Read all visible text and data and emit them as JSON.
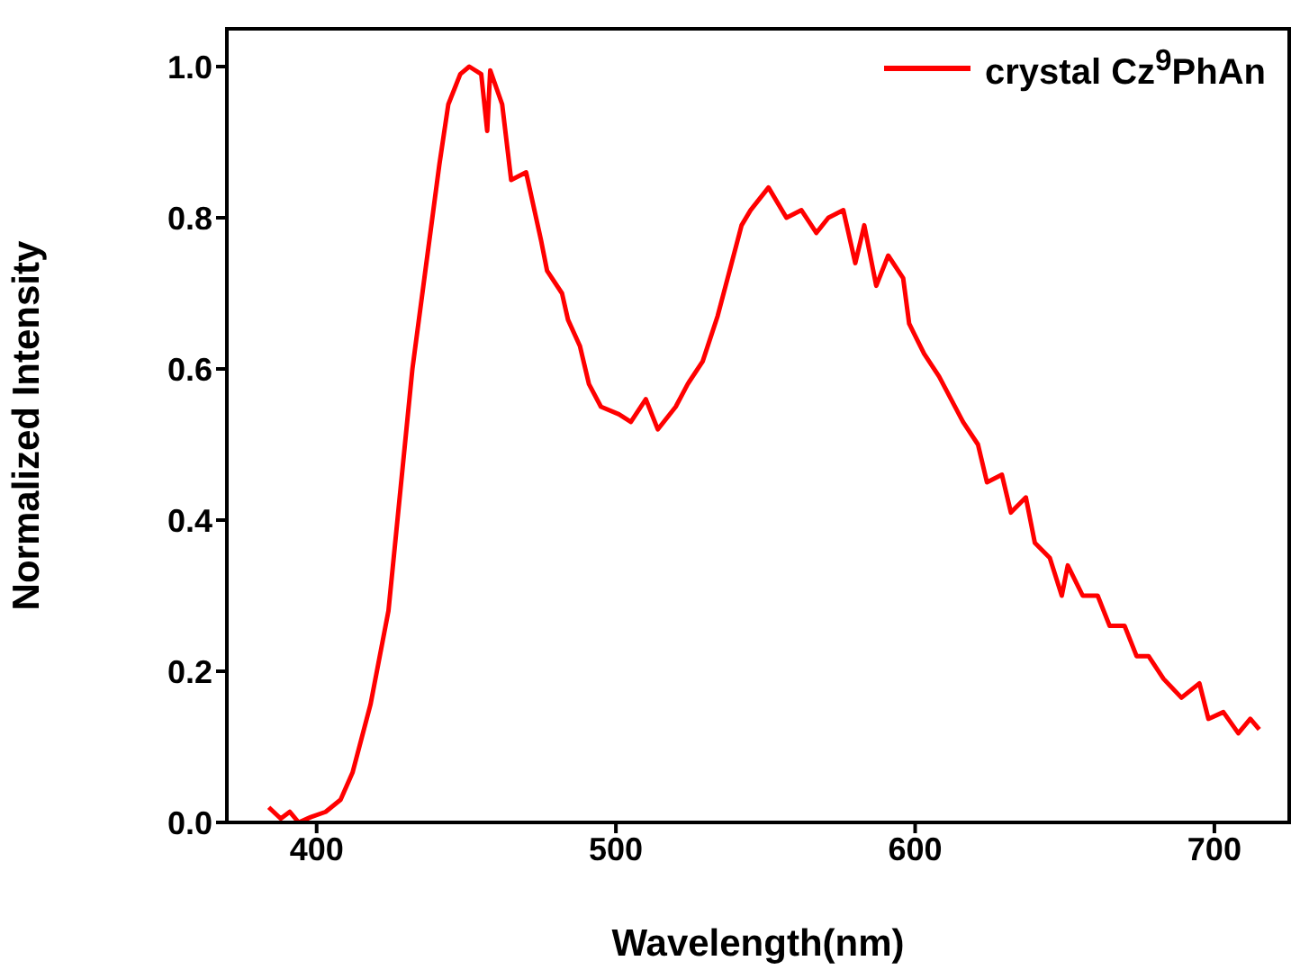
{
  "chart_data": {
    "type": "line",
    "xlabel": "Wavelength(nm)",
    "ylabel": "Normalized Intensity",
    "xlim": [
      370,
      725
    ],
    "xticks": [
      400,
      500,
      600,
      700
    ],
    "ylim": [
      0,
      1.05
    ],
    "yticks": [
      {
        "value": 0,
        "label": "0.0"
      },
      {
        "value": 0.2,
        "label": "0.2"
      },
      {
        "value": 0.4,
        "label": "0.4"
      },
      {
        "value": 0.6,
        "label": "0.6"
      },
      {
        "value": 0.8,
        "label": "0.8"
      },
      {
        "value": 1,
        "label": "1.0"
      }
    ],
    "legend": "top right",
    "marker": "none",
    "line_style": "solid",
    "grid": false,
    "series": [
      {
        "name": "crystal Cz$^{9}$PhAn",
        "color": "#ff0000",
        "x": [
          384,
          388,
          391,
          394,
          398,
          403,
          408,
          412,
          418,
          424,
          429,
          432,
          436,
          441,
          444,
          448,
          451,
          455,
          457,
          458,
          462,
          465,
          470,
          475,
          477,
          482,
          484,
          488,
          491,
          495,
          501,
          505,
          510,
          514,
          520,
          524,
          529,
          534,
          538,
          542,
          545,
          551,
          557,
          562,
          567,
          571,
          576,
          580,
          583,
          587,
          591,
          596,
          598,
          603,
          608,
          612,
          616,
          621,
          624,
          629,
          632,
          637,
          640,
          645,
          649,
          651,
          656,
          661,
          665,
          670,
          674,
          678,
          683,
          689,
          695,
          698,
          703,
          708,
          712,
          715
        ],
        "values": [
          0.02,
          0.005,
          0.014,
          0,
          0.007,
          0.014,
          0.03,
          0.066,
          0.156,
          0.28,
          0.48,
          0.6,
          0.72,
          0.87,
          0.95,
          0.99,
          1,
          0.99,
          0.915,
          0.995,
          0.95,
          0.85,
          0.86,
          0.77,
          0.73,
          0.7,
          0.665,
          0.63,
          0.58,
          0.55,
          0.54,
          0.53,
          0.56,
          0.52,
          0.55,
          0.58,
          0.61,
          0.67,
          0.73,
          0.79,
          0.81,
          0.84,
          0.8,
          0.81,
          0.78,
          0.8,
          0.81,
          0.74,
          0.79,
          0.71,
          0.75,
          0.72,
          0.66,
          0.62,
          0.59,
          0.56,
          0.53,
          0.5,
          0.45,
          0.46,
          0.41,
          0.43,
          0.37,
          0.35,
          0.3,
          0.34,
          0.3,
          0.3,
          0.26,
          0.26,
          0.22,
          0.22,
          0.19,
          0.165,
          0.184,
          0.137,
          0.146,
          0.118,
          0.137,
          0.123
        ]
      }
    ]
  }
}
